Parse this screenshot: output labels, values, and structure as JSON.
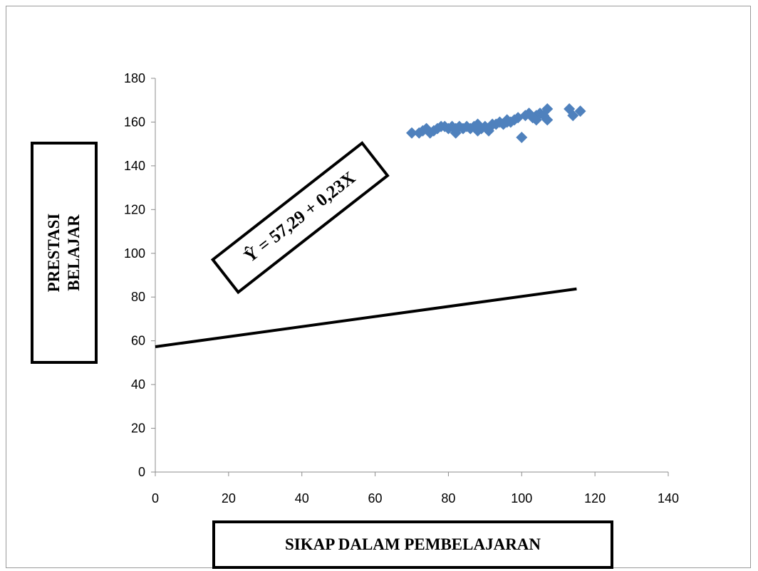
{
  "chart_data": {
    "type": "scatter",
    "xlabel": "SIKAP DALAM PEMBELAJARAN",
    "ylabel_lines": [
      "PRESTASI",
      "BELAJAR"
    ],
    "equation": "Ŷ = 57,29 + 0,23X",
    "xlim": [
      0,
      140
    ],
    "ylim": [
      0,
      180
    ],
    "x_ticks": [
      "0",
      "20",
      "40",
      "60",
      "80",
      "100",
      "120",
      "140"
    ],
    "y_ticks": [
      "0",
      "20",
      "40",
      "60",
      "80",
      "100",
      "120",
      "140",
      "160",
      "180"
    ],
    "grid": false,
    "legend": "none",
    "marker_color": "#4f81bd",
    "marker_shape": "diamond",
    "series": [
      {
        "x": [
          70,
          72,
          73,
          74,
          75,
          76,
          77,
          78,
          79,
          80,
          81,
          82,
          82,
          83,
          84,
          85,
          86,
          87,
          88,
          88,
          89,
          90,
          91,
          91,
          92,
          93,
          94,
          95,
          96,
          96,
          97,
          98,
          99,
          100,
          101,
          102,
          103,
          104,
          104,
          105,
          106,
          107,
          107,
          113,
          114,
          116
        ],
        "y": [
          155,
          155,
          156,
          157,
          155,
          156,
          157,
          158,
          158,
          157,
          158,
          155,
          157,
          158,
          157,
          158,
          157,
          158,
          159,
          156,
          157,
          158,
          156,
          157,
          159,
          159,
          160,
          159,
          161,
          160,
          160,
          161,
          162,
          153,
          163,
          164,
          162,
          161,
          163,
          164,
          163,
          161,
          166,
          166,
          163,
          165
        ]
      }
    ],
    "regression_line": {
      "intercept": 57.29,
      "slope": 0.23,
      "x_range": [
        0,
        115
      ]
    },
    "line_color": "#000000"
  }
}
